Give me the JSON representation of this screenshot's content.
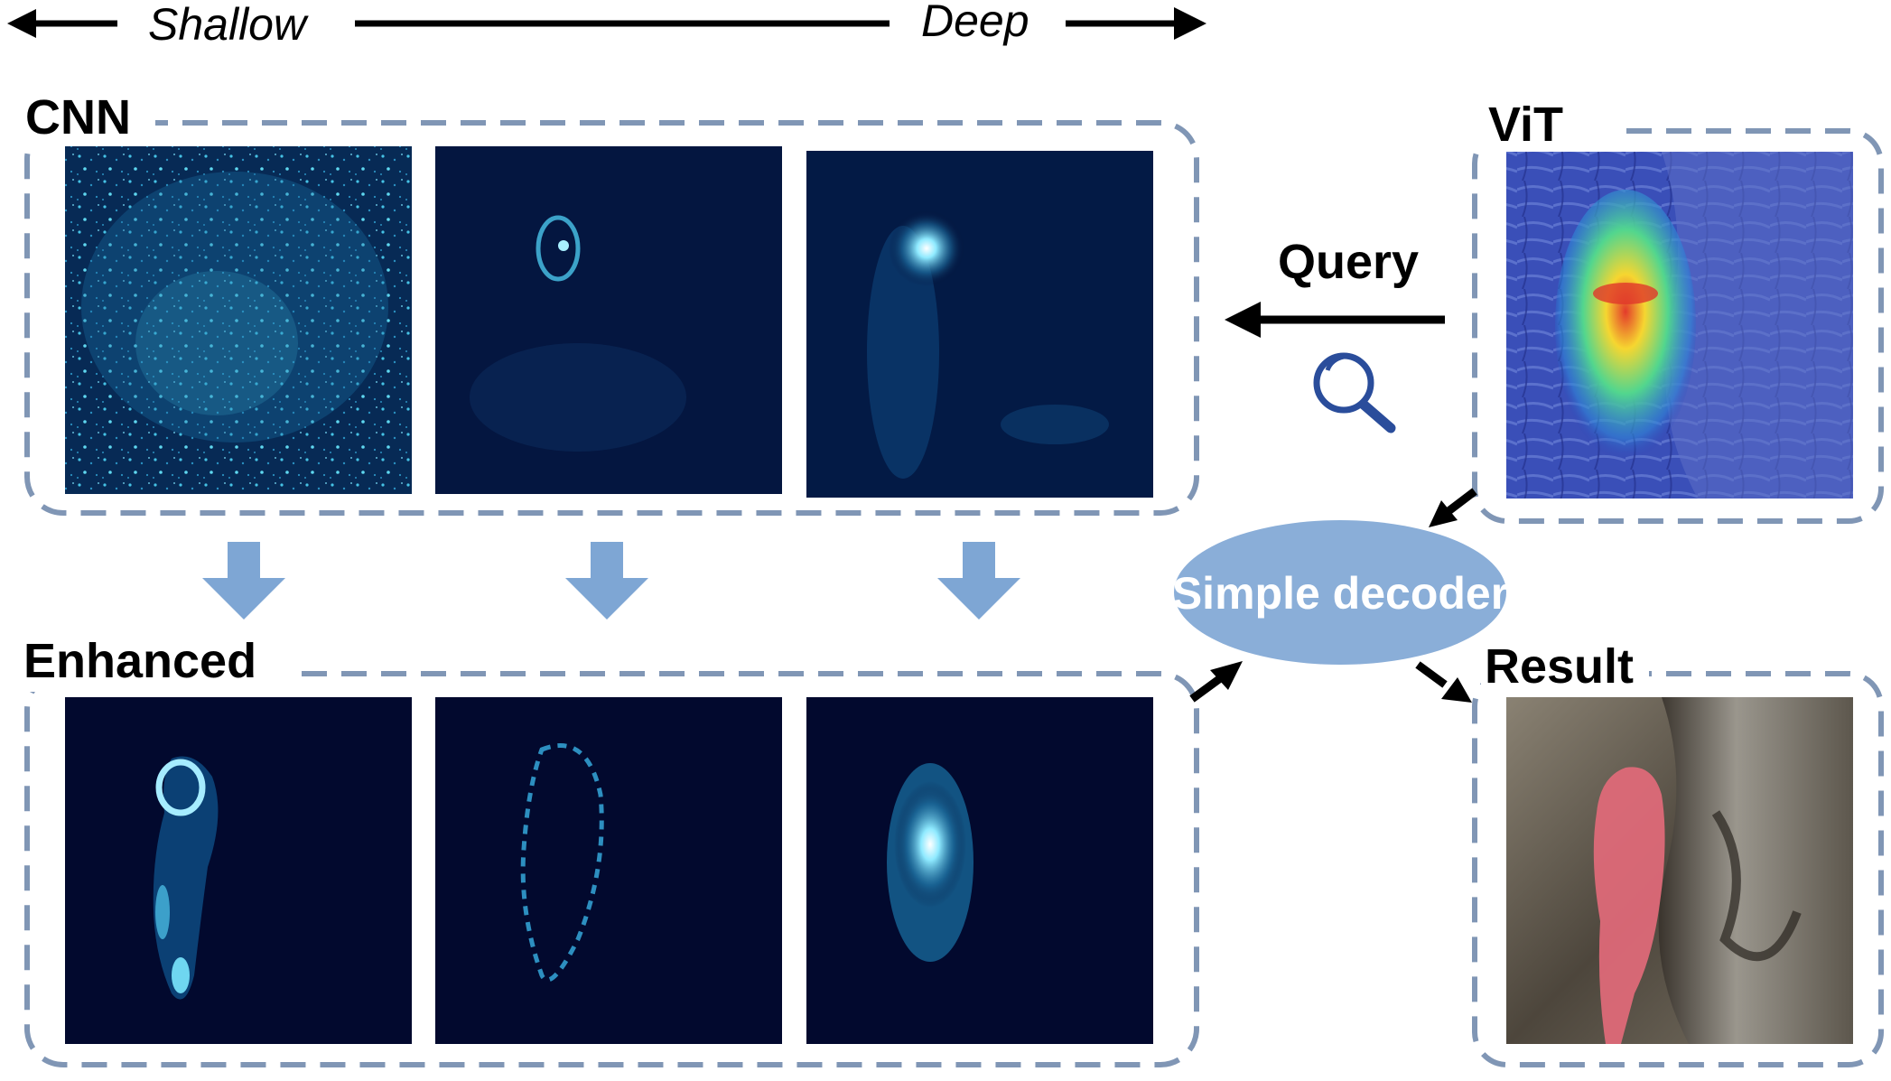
{
  "axis": {
    "left_label": "Shallow",
    "right_label": "Deep"
  },
  "cnn": {
    "title": "CNN"
  },
  "enhanced": {
    "title": "Enhanced"
  },
  "vit": {
    "title": "ViT"
  },
  "result": {
    "title": "Result"
  },
  "query": {
    "label": "Query",
    "icon": "magnifier-icon"
  },
  "decoder": {
    "label": "Simple decoder"
  },
  "colors": {
    "dash": "#8096b5",
    "decoder_fill": "#8aaed8",
    "down_arrow": "#7ea6d4",
    "feature_dark": "#03082e",
    "feature_glow": "#8feaff",
    "mask": "#e26a7a"
  }
}
